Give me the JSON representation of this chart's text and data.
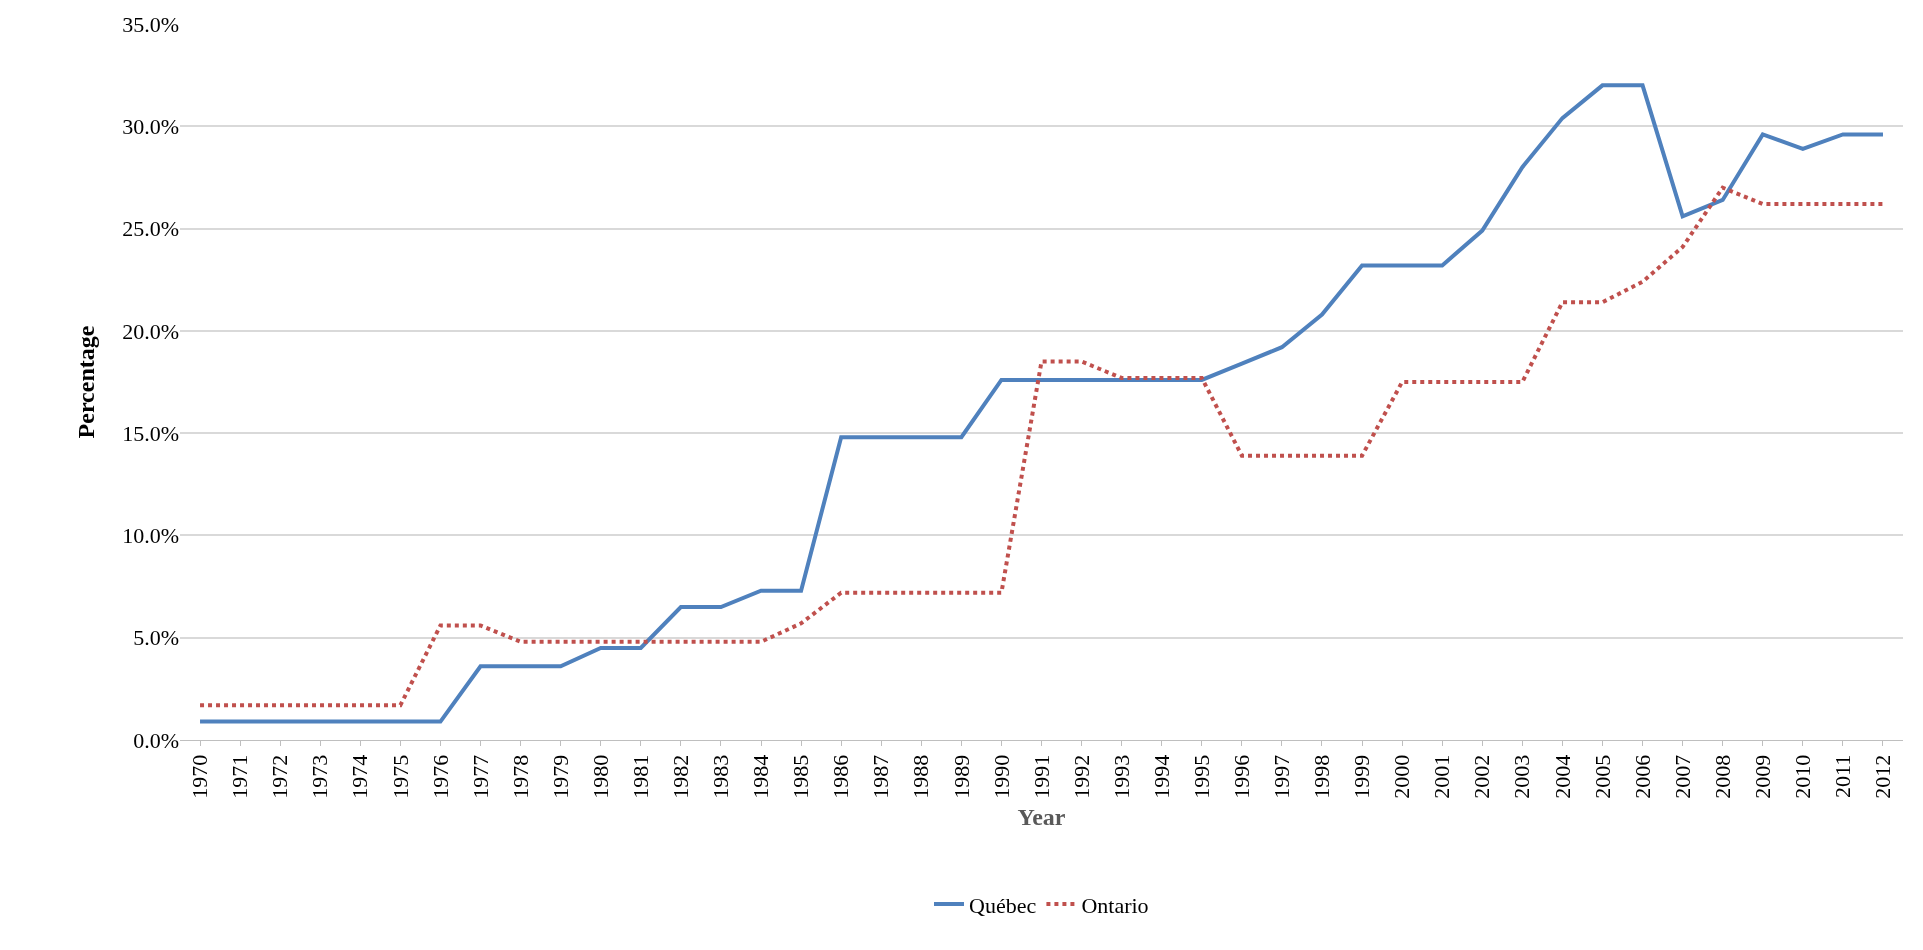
{
  "chart_data": {
    "type": "line",
    "xlabel": "Year",
    "ylabel": "Percentage",
    "categories": [
      "1970",
      "1971",
      "1972",
      "1973",
      "1974",
      "1975",
      "1976",
      "1977",
      "1978",
      "1979",
      "1980",
      "1981",
      "1982",
      "1983",
      "1984",
      "1985",
      "1986",
      "1987",
      "1988",
      "1989",
      "1990",
      "1991",
      "1992",
      "1993",
      "1994",
      "1995",
      "1996",
      "1997",
      "1998",
      "1999",
      "2000",
      "2001",
      "2002",
      "2003",
      "2004",
      "2005",
      "2006",
      "2007",
      "2008",
      "2009",
      "2010",
      "2011",
      "2012"
    ],
    "series": [
      {
        "name": "Québec",
        "color": "#4f81bd",
        "line_style": "solid",
        "values": [
          0.9,
          0.9,
          0.9,
          0.9,
          0.9,
          0.9,
          0.9,
          3.6,
          3.6,
          3.6,
          4.5,
          4.5,
          6.5,
          6.5,
          7.3,
          7.3,
          14.8,
          14.8,
          14.8,
          14.8,
          17.6,
          17.6,
          17.6,
          17.6,
          17.6,
          17.6,
          18.4,
          19.2,
          20.8,
          23.2,
          23.2,
          23.2,
          24.9,
          28.0,
          30.4,
          32.0,
          32.0,
          25.6,
          26.4,
          29.6,
          28.9,
          29.6,
          29.6
        ]
      },
      {
        "name": "Ontario",
        "color": "#c0504d",
        "line_style": "dotted",
        "values": [
          1.7,
          1.7,
          1.7,
          1.7,
          1.7,
          1.7,
          5.6,
          5.6,
          4.8,
          4.8,
          4.8,
          4.8,
          4.8,
          4.8,
          4.8,
          5.7,
          7.2,
          7.2,
          7.2,
          7.2,
          7.2,
          18.5,
          18.5,
          17.7,
          17.7,
          17.7,
          13.9,
          13.9,
          13.9,
          13.9,
          17.5,
          17.5,
          17.5,
          17.5,
          21.4,
          21.4,
          22.4,
          24.1,
          27.0,
          26.2,
          26.2,
          26.2,
          26.2
        ]
      }
    ],
    "ylim": [
      0,
      35
    ],
    "yticks": [
      {
        "value": 0,
        "label": "0.0%"
      },
      {
        "value": 5,
        "label": "5.0%"
      },
      {
        "value": 10,
        "label": "10.0%"
      },
      {
        "value": 15,
        "label": "15.0%"
      },
      {
        "value": 20,
        "label": "20.0%"
      },
      {
        "value": 25,
        "label": "25.0%"
      },
      {
        "value": 30,
        "label": "30.0%"
      },
      {
        "value": 35,
        "label": "35.0%"
      }
    ],
    "grid": "y",
    "legend": "bottom",
    "marker": "none"
  }
}
